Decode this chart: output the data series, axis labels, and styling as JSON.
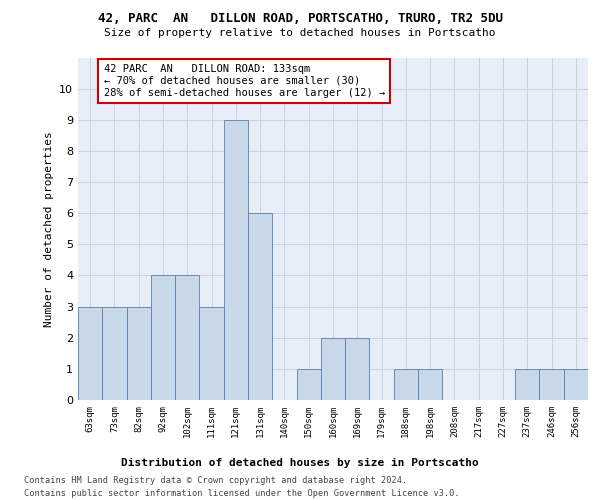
{
  "title": "42, PARC  AN   DILLON ROAD, PORTSCATHO, TRURO, TR2 5DU",
  "subtitle": "Size of property relative to detached houses in Portscatho",
  "xlabel_bottom": "Distribution of detached houses by size in Portscatho",
  "ylabel": "Number of detached properties",
  "categories": [
    "63sqm",
    "73sqm",
    "82sqm",
    "92sqm",
    "102sqm",
    "111sqm",
    "121sqm",
    "131sqm",
    "140sqm",
    "150sqm",
    "160sqm",
    "169sqm",
    "179sqm",
    "188sqm",
    "198sqm",
    "208sqm",
    "217sqm",
    "227sqm",
    "237sqm",
    "246sqm",
    "256sqm"
  ],
  "values": [
    3,
    3,
    3,
    4,
    4,
    3,
    9,
    6,
    0,
    1,
    2,
    2,
    0,
    1,
    1,
    0,
    0,
    0,
    1,
    1,
    1
  ],
  "bar_color": "#c8d8e8",
  "bar_edge_color": "#5a7fa8",
  "highlight_index": 6,
  "ylim": [
    0,
    11
  ],
  "yticks": [
    0,
    1,
    2,
    3,
    4,
    5,
    6,
    7,
    8,
    9,
    10,
    11
  ],
  "grid_color": "#c8d4e4",
  "background_color": "#e8eef8",
  "annotation_box_text": "42 PARC  AN   DILLON ROAD: 133sqm\n← 70% of detached houses are smaller (30)\n28% of semi-detached houses are larger (12) →",
  "annotation_box_edge_color": "#cc0000",
  "footer_line1": "Contains HM Land Registry data © Crown copyright and database right 2024.",
  "footer_line2": "Contains public sector information licensed under the Open Government Licence v3.0."
}
